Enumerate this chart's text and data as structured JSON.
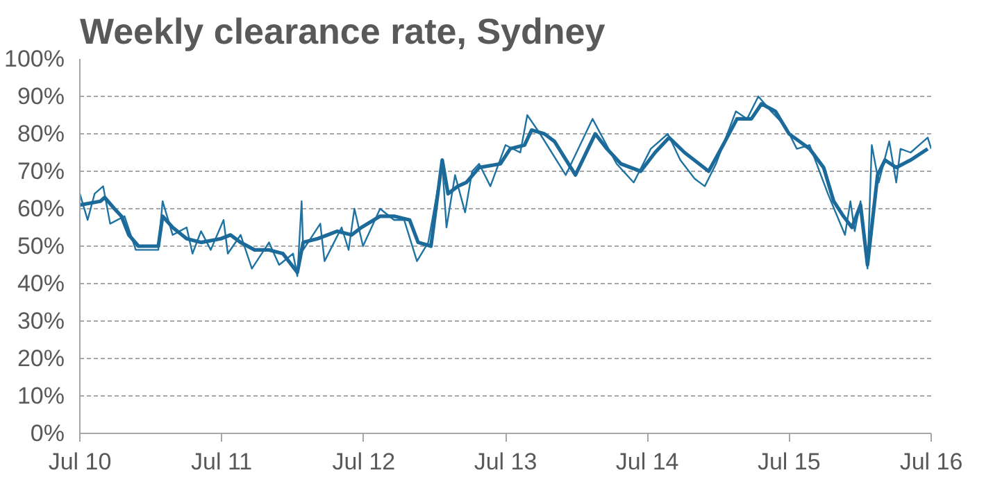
{
  "chart_data": {
    "type": "line",
    "title": "Weekly clearance rate, Sydney",
    "grid": "y",
    "line_style": "solid",
    "xlim": [
      "2010-07-01",
      "2016-07-01"
    ],
    "xticks": [
      {
        "value": "2010-07-01",
        "label": "Jul 10"
      },
      {
        "value": "2011-07-01",
        "label": "Jul 11"
      },
      {
        "value": "2012-07-01",
        "label": "Jul 12"
      },
      {
        "value": "2013-07-01",
        "label": "Jul 13"
      },
      {
        "value": "2014-07-01",
        "label": "Jul 14"
      },
      {
        "value": "2015-07-01",
        "label": "Jul 15"
      },
      {
        "value": "2016-07-01",
        "label": "Jul 16"
      }
    ],
    "ylim": [
      0,
      100
    ],
    "yticks": [
      {
        "value": 0,
        "label": "0%"
      },
      {
        "value": 10,
        "label": "10%"
      },
      {
        "value": 20,
        "label": "20%"
      },
      {
        "value": 30,
        "label": "30%"
      },
      {
        "value": 40,
        "label": "40%"
      },
      {
        "value": 50,
        "label": "50%"
      },
      {
        "value": 60,
        "label": "60%"
      },
      {
        "value": 70,
        "label": "70%"
      },
      {
        "value": 80,
        "label": "80%"
      },
      {
        "value": 90,
        "label": "90%"
      },
      {
        "value": 100,
        "label": "100%"
      }
    ],
    "series": [
      {
        "color": "#1f73a3",
        "x": [
          "2010-07-01",
          "2010-07-21",
          "2010-08-08",
          "2010-08-30",
          "2010-09-17",
          "2010-10-24",
          "2010-11-22",
          "2011-01-19",
          "2011-01-30",
          "2011-02-25",
          "2011-04-02",
          "2011-04-17",
          "2011-05-09",
          "2011-06-03",
          "2011-07-06",
          "2011-07-17",
          "2011-08-19",
          "2011-09-17",
          "2011-10-31",
          "2011-11-26",
          "2012-01-01",
          "2012-01-12",
          "2012-01-23",
          "2012-01-27",
          "2012-03-11",
          "2012-03-22",
          "2012-05-05",
          "2012-05-23",
          "2012-06-07",
          "2012-06-29",
          "2012-08-12",
          "2012-09-17",
          "2012-10-13",
          "2012-11-15",
          "2012-12-14",
          "2013-01-19",
          "2013-01-30",
          "2013-02-21",
          "2013-03-19",
          "2013-04-06",
          "2013-04-24",
          "2013-05-23",
          "2013-07-01",
          "2013-08-08",
          "2013-08-26",
          "2013-09-28",
          "2013-12-03",
          "2014-02-10",
          "2014-04-13",
          "2014-05-27",
          "2014-07-10",
          "2014-08-23",
          "2014-09-24",
          "2014-10-31",
          "2014-11-26",
          "2014-12-25",
          "2015-02-14",
          "2015-03-15",
          "2015-04-13",
          "2015-05-16",
          "2015-06-22",
          "2015-07-21",
          "2015-08-23",
          "2015-10-09",
          "2015-11-22",
          "2015-12-06",
          "2015-12-17",
          "2016-01-01",
          "2016-01-19",
          "2016-01-30",
          "2016-02-17",
          "2016-03-15",
          "2016-04-02",
          "2016-04-13",
          "2016-05-09",
          "2016-06-22",
          "2016-07-01"
        ],
        "values": [
          64,
          57,
          64,
          66,
          56,
          58,
          49,
          49,
          62,
          53,
          55,
          48,
          54,
          49,
          57,
          48,
          53,
          44,
          51,
          45,
          48,
          42,
          62,
          49,
          56,
          46,
          55,
          49,
          60,
          50,
          60,
          57,
          57,
          46,
          51,
          72,
          55,
          69,
          59,
          70,
          72,
          66,
          77,
          75,
          85,
          80,
          69,
          84,
          72,
          67,
          76,
          80,
          73,
          68,
          66,
          72,
          86,
          84,
          90,
          86,
          82,
          76,
          77,
          64,
          53,
          62,
          54,
          62,
          44,
          77,
          67,
          78,
          67,
          76,
          75,
          79,
          76
        ]
      },
      {
        "color": "#1b6a9a",
        "x": [
          "2010-07-01",
          "2010-08-23",
          "2010-09-03",
          "2010-09-28",
          "2010-10-16",
          "2010-11-04",
          "2010-11-29",
          "2011-01-19",
          "2011-01-30",
          "2011-02-25",
          "2011-04-02",
          "2011-05-09",
          "2011-06-29",
          "2011-07-24",
          "2011-08-19",
          "2011-09-24",
          "2011-10-31",
          "2011-12-06",
          "2012-01-12",
          "2012-01-27",
          "2012-03-04",
          "2012-03-30",
          "2012-04-24",
          "2012-05-31",
          "2012-06-25",
          "2012-08-12",
          "2012-09-17",
          "2012-10-27",
          "2012-11-18",
          "2012-12-21",
          "2013-01-19",
          "2013-02-03",
          "2013-02-28",
          "2013-03-22",
          "2013-04-24",
          "2013-06-18",
          "2013-07-13",
          "2013-08-19",
          "2013-09-06",
          "2013-10-09",
          "2013-11-04",
          "2013-12-28",
          "2014-02-17",
          "2014-03-19",
          "2014-04-24",
          "2014-06-14",
          "2014-07-21",
          "2014-08-26",
          "2014-10-05",
          "2014-12-06",
          "2015-01-12",
          "2015-02-17",
          "2015-03-26",
          "2015-04-21",
          "2015-05-27",
          "2015-07-01",
          "2015-08-23",
          "2015-09-28",
          "2015-10-24",
          "2015-11-18",
          "2015-12-10",
          "2016-01-01",
          "2016-01-19",
          "2016-02-14",
          "2016-03-04",
          "2016-04-02",
          "2016-05-09",
          "2016-06-22"
        ],
        "values": [
          61,
          62,
          63,
          60,
          58,
          53,
          50,
          50,
          58,
          55,
          52,
          51,
          52,
          53,
          51,
          49,
          49,
          48,
          43,
          51,
          52,
          53,
          54,
          53,
          55,
          58,
          58,
          57,
          51,
          50,
          73,
          64,
          66,
          67,
          71,
          72,
          76,
          77,
          81,
          80,
          78,
          69,
          80,
          76,
          72,
          70,
          75,
          79,
          75,
          70,
          77,
          84,
          84,
          88,
          86,
          80,
          76,
          71,
          62,
          58,
          55,
          61,
          45,
          69,
          73,
          71,
          73,
          76
        ]
      }
    ]
  }
}
